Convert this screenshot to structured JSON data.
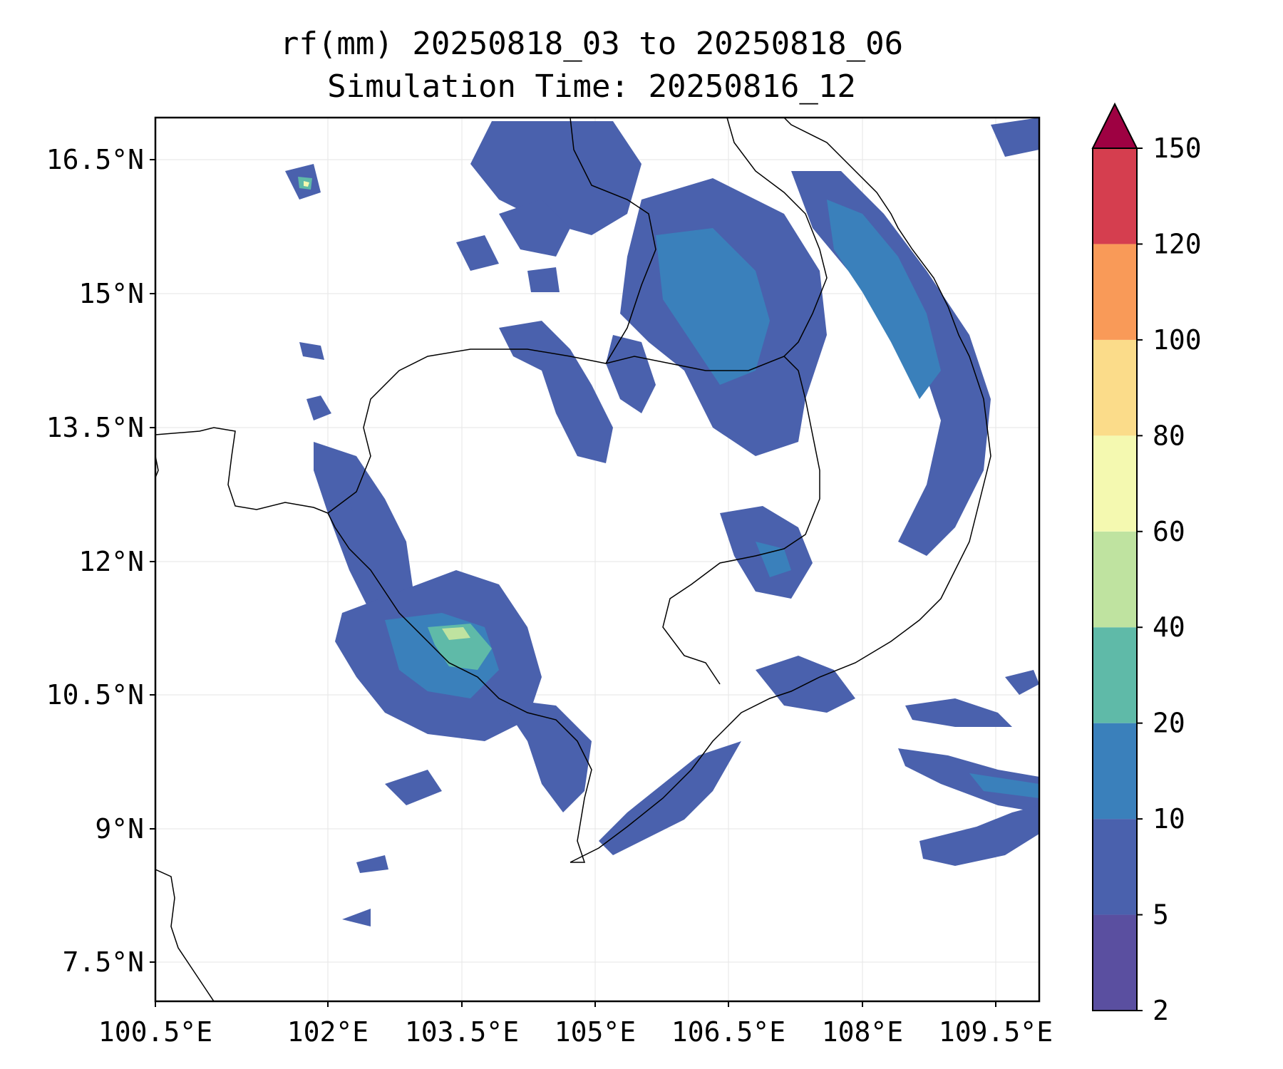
{
  "title": {
    "line1": "rf(mm) 20250818_03 to 20250818_06",
    "line2": "Simulation Time: 20250816_12"
  },
  "map": {
    "lon_range": [
      100.5,
      109.5
    ],
    "lat_range": [
      7.5,
      16.5
    ],
    "lon_ticks": [
      "100.5°E",
      "102°E",
      "103.5°E",
      "105°E",
      "106.5°E",
      "108°E",
      "109.5°E"
    ],
    "lat_ticks": [
      "16.5°N",
      "15°N",
      "13.5°N",
      "12°N",
      "10.5°N",
      "9°N",
      "7.5°N"
    ],
    "grid": true
  },
  "colorbar": {
    "levels": [
      "2",
      "5",
      "10",
      "20",
      "40",
      "60",
      "80",
      "100",
      "120",
      "150"
    ],
    "colors": [
      "#5a4fa0",
      "#4a61ad",
      "#3a80bb",
      "#5fbaa8",
      "#bfe3a0",
      "#f4f9b0",
      "#fbdc8a",
      "#f99a58",
      "#d53e4f",
      "#9e0142"
    ],
    "extend": "max"
  }
}
